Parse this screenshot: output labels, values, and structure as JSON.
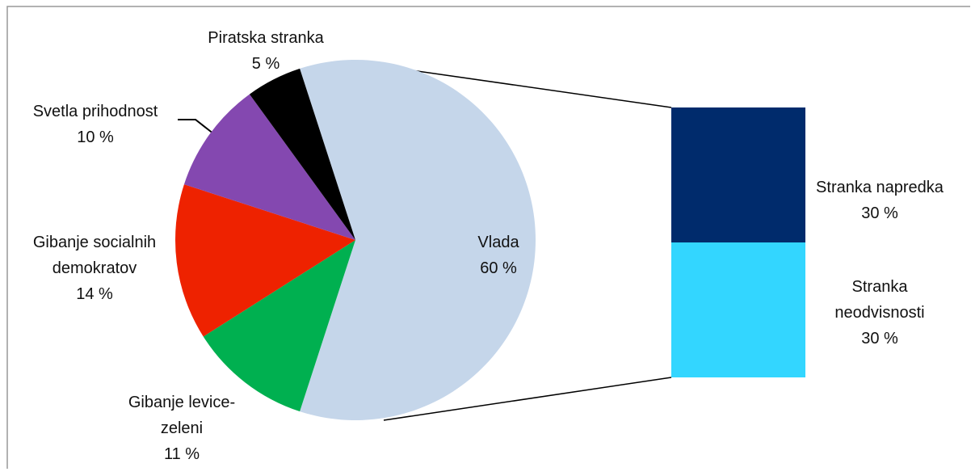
{
  "chart_data": {
    "type": "bar-of-pie",
    "categories": [
      "Vlada",
      "Gibanje levice-zeleni",
      "Gibanje socialnih demokratov",
      "Svetla prihodnost",
      "Piratska stranka"
    ],
    "values": [
      60,
      11,
      14,
      10,
      5
    ],
    "value_labels": [
      "60 %",
      "11 %",
      "14 %",
      "10 %",
      "5 %"
    ],
    "colors": [
      "#c5d6ea",
      "#00b050",
      "#ee2200",
      "#8448b0",
      "#000000"
    ],
    "bar": {
      "categories": [
        "Stranka napredka",
        "Stranka neodvisnosti"
      ],
      "values": [
        30,
        30
      ],
      "value_labels": [
        "30 %",
        "30 %"
      ],
      "colors": [
        "#002b6c",
        "#33d6ff"
      ]
    }
  }
}
